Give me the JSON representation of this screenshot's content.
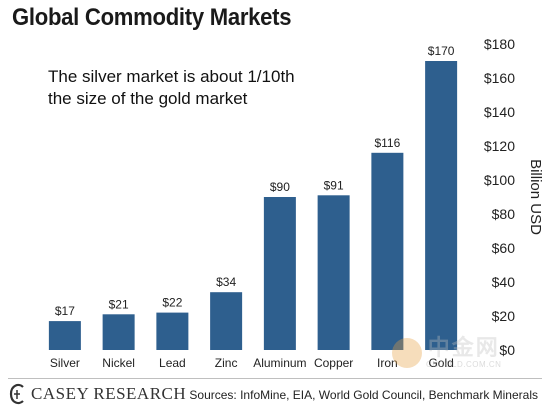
{
  "title": "Global Commodity Markets",
  "annotation_lines": [
    "The silver market is about 1/10th",
    "the size of the gold market"
  ],
  "logo_text": "CASEY RESEARCH",
  "sources": "Sources: InfoMine, EIA, World Gold Council, Benchmark Minerals",
  "watermark": {
    "cn": "中金网",
    "url": "CNGOLD.COM.CN"
  },
  "chart_data": {
    "type": "bar",
    "title": "Global Commodity Markets",
    "categories": [
      "Silver",
      "Nickel",
      "Lead",
      "Zinc",
      "Aluminum",
      "Copper",
      "Iron",
      "Gold"
    ],
    "values": [
      17,
      21,
      22,
      34,
      90,
      91,
      116,
      170
    ],
    "data_labels": [
      "$17",
      "$21",
      "$22",
      "$34",
      "$90",
      "$91",
      "$116",
      "$170"
    ],
    "ylabel": "Billion USD",
    "ylim": [
      0,
      180
    ],
    "yticks": [
      0,
      20,
      40,
      60,
      80,
      100,
      120,
      140,
      160,
      180
    ],
    "ytick_labels": [
      "$0",
      "$20",
      "$40",
      "$60",
      "$80",
      "$100",
      "$120",
      "$140",
      "$160",
      "$180"
    ],
    "y_axis_side": "right",
    "grid": false,
    "bar_color": "#2e5f8e"
  }
}
